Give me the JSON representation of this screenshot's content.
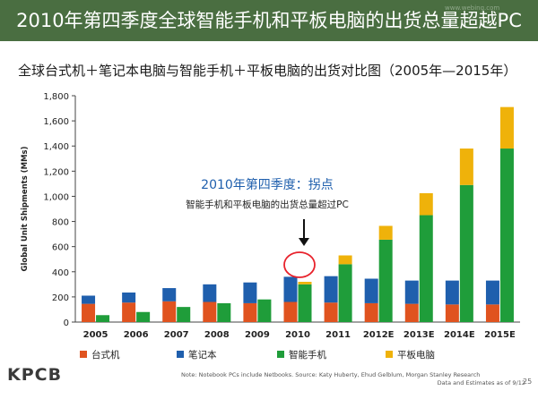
{
  "title": "2010年第四季度全球智能手机和平板电脑的出货总量超越PC",
  "subtitle": "全球台式机＋笔记本电脑与智能手机＋平板电脑的出货对比图（2005年—2015年）",
  "brand": "KPCB",
  "page_number": "25",
  "footnote": {
    "line1": "Note: Notebook PCs include Netbooks. Source: Katy Huberty, Ehud Gelblum, Morgan Stanley Research",
    "line2": "Data and Estimates as of 9/12"
  },
  "watermark_top": "www.webing.com",
  "annotation": {
    "heading": "2010年第四季度：拐点",
    "text": "智能手机和平板电脑的出货总量超过PC"
  },
  "colors": {
    "desktop": "#e0531f",
    "notebook": "#1f5fad",
    "smartphone": "#1f9d3a",
    "tablet": "#efb20a",
    "title_bar": "#4a6e41",
    "highlight_circle": "#e8222c"
  },
  "chart_data": {
    "type": "bar",
    "stacking": "two stacked groups per year: desktop+notebook (PC) and smartphone+tablet",
    "ylabel": "Global Unit Shipments (MMs)",
    "xlabel": "",
    "ylim": [
      0,
      1800
    ],
    "yticks": [
      0,
      200,
      400,
      600,
      800,
      1000,
      1200,
      1400,
      1600,
      1800
    ],
    "ytick_labels": [
      "0",
      "200",
      "400",
      "600",
      "800",
      "1,000",
      "1,200",
      "1,400",
      "1,600",
      "1,800"
    ],
    "grid": false,
    "legend_position": "bottom",
    "categories": [
      "2005",
      "2006",
      "2007",
      "2008",
      "2009",
      "2010",
      "2011",
      "2012E",
      "2013E",
      "2014E",
      "2015E"
    ],
    "series": [
      {
        "name": "台式机",
        "key": "desktop",
        "group": "pc",
        "values": [
          145,
          155,
          165,
          160,
          150,
          160,
          155,
          150,
          145,
          140,
          140
        ]
      },
      {
        "name": "笔记本",
        "key": "notebook",
        "group": "pc",
        "values": [
          65,
          80,
          105,
          140,
          165,
          200,
          210,
          195,
          185,
          190,
          190
        ]
      },
      {
        "name": "智能手机",
        "key": "smartphone",
        "group": "mobile",
        "values": [
          55,
          80,
          120,
          150,
          180,
          300,
          460,
          655,
          850,
          1090,
          1380
        ]
      },
      {
        "name": "平板电脑",
        "key": "tablet",
        "group": "mobile",
        "values": [
          0,
          0,
          0,
          0,
          0,
          20,
          70,
          110,
          175,
          290,
          330
        ]
      }
    ]
  }
}
